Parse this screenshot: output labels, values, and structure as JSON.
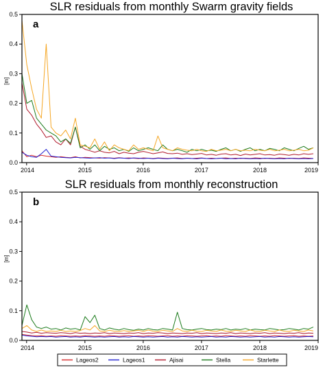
{
  "chart_data": [
    {
      "type": "line",
      "panel_label": "a",
      "title": "SLR residuals from monthly Swarm gravity fields",
      "xlabel": "",
      "ylabel": "[m]",
      "xlim": [
        2013.92,
        2019.0
      ],
      "ylim": [
        0,
        0.5
      ],
      "x_ticks": [
        "2014",
        "2015",
        "2016",
        "2017",
        "2018",
        "2019"
      ],
      "x_tick_values": [
        2014,
        2015,
        2016,
        2017,
        2018,
        2019
      ],
      "y_ticks": [
        "0.0",
        "0.1",
        "0.2",
        "0.3",
        "0.4",
        "0.5"
      ],
      "y_tick_values": [
        0,
        0.1,
        0.2,
        0.3,
        0.4,
        0.5
      ],
      "grid": false,
      "x_step": 0.0833,
      "series": [
        {
          "name": "Lageos2",
          "color": "#d62728",
          "values": [
            0.04,
            0.02,
            0.025,
            0.02,
            0.025,
            0.022,
            0.02,
            0.018,
            0.02,
            0.018,
            0.017,
            0.02,
            0.016,
            0.018,
            0.017,
            0.016,
            0.015,
            0.017,
            0.016,
            0.015,
            0.017,
            0.015,
            0.016,
            0.015,
            0.014,
            0.016,
            0.015,
            0.014,
            0.016,
            0.015,
            0.014,
            0.015,
            0.016,
            0.014,
            0.015,
            0.014,
            0.015,
            0.016,
            0.014,
            0.015,
            0.014,
            0.015,
            0.016,
            0.014,
            0.015,
            0.014,
            0.015,
            0.014,
            0.016,
            0.015,
            0.014,
            0.015,
            0.014,
            0.016,
            0.015,
            0.014,
            0.015,
            0.014,
            0.016,
            0.015,
            0.014
          ]
        },
        {
          "name": "Lageos1",
          "color": "#1f1fd0",
          "values": [
            0.035,
            0.025,
            0.02,
            0.018,
            0.03,
            0.045,
            0.022,
            0.02,
            0.018,
            0.017,
            0.016,
            0.018,
            0.017,
            0.016,
            0.015,
            0.016,
            0.017,
            0.015,
            0.016,
            0.014,
            0.016,
            0.015,
            0.014,
            0.016,
            0.015,
            0.014,
            0.015,
            0.013,
            0.015,
            0.014,
            0.013,
            0.015,
            0.014,
            0.013,
            0.015,
            0.014,
            0.013,
            0.015,
            0.014,
            0.013,
            0.014,
            0.015,
            0.013,
            0.014,
            0.013,
            0.015,
            0.014,
            0.013,
            0.014,
            0.013,
            0.015,
            0.014,
            0.013,
            0.014,
            0.013,
            0.015,
            0.014,
            0.013,
            0.014,
            0.013,
            0.014
          ]
        },
        {
          "name": "Ajisai",
          "color": "#b0182a",
          "values": [
            0.27,
            0.18,
            0.16,
            0.13,
            0.11,
            0.085,
            0.09,
            0.07,
            0.06,
            0.08,
            0.06,
            0.12,
            0.055,
            0.045,
            0.04,
            0.035,
            0.04,
            0.035,
            0.033,
            0.038,
            0.03,
            0.035,
            0.032,
            0.03,
            0.035,
            0.038,
            0.034,
            0.03,
            0.033,
            0.036,
            0.031,
            0.03,
            0.032,
            0.028,
            0.03,
            0.027,
            0.029,
            0.031,
            0.026,
            0.028,
            0.025,
            0.029,
            0.03,
            0.026,
            0.028,
            0.024,
            0.029,
            0.026,
            0.028,
            0.03,
            0.026,
            0.027,
            0.025,
            0.029,
            0.027,
            0.025,
            0.028,
            0.026,
            0.03,
            0.028,
            0.03
          ]
        },
        {
          "name": "Stella",
          "color": "#1a7a1a",
          "values": [
            0.3,
            0.2,
            0.21,
            0.15,
            0.13,
            0.11,
            0.1,
            0.09,
            0.07,
            0.08,
            0.065,
            0.12,
            0.05,
            0.06,
            0.045,
            0.06,
            0.04,
            0.055,
            0.045,
            0.05,
            0.04,
            0.045,
            0.038,
            0.05,
            0.04,
            0.045,
            0.05,
            0.045,
            0.04,
            0.06,
            0.045,
            0.04,
            0.045,
            0.04,
            0.035,
            0.045,
            0.04,
            0.045,
            0.04,
            0.042,
            0.038,
            0.045,
            0.05,
            0.04,
            0.045,
            0.038,
            0.045,
            0.05,
            0.04,
            0.045,
            0.04,
            0.048,
            0.045,
            0.04,
            0.05,
            0.045,
            0.04,
            0.048,
            0.055,
            0.045,
            0.05
          ]
        },
        {
          "name": "Starlette",
          "color": "#f5a623",
          "values": [
            0.48,
            0.33,
            0.25,
            0.18,
            0.15,
            0.4,
            0.12,
            0.1,
            0.09,
            0.11,
            0.08,
            0.15,
            0.06,
            0.055,
            0.05,
            0.08,
            0.045,
            0.07,
            0.04,
            0.06,
            0.05,
            0.045,
            0.04,
            0.06,
            0.045,
            0.05,
            0.045,
            0.04,
            0.09,
            0.05,
            0.045,
            0.04,
            0.05,
            0.045,
            0.042,
            0.04,
            0.045,
            0.04,
            0.038,
            0.045,
            0.04,
            0.042,
            0.045,
            0.04,
            0.045,
            0.04,
            0.042,
            0.04,
            0.045,
            0.042,
            0.04,
            0.045,
            0.04,
            0.042,
            0.045,
            0.04,
            0.042,
            0.045,
            0.04,
            0.042,
            0.05
          ]
        }
      ]
    },
    {
      "type": "line",
      "panel_label": "b",
      "title": "SLR residuals from monthly reconstruction",
      "xlabel": "",
      "ylabel": "[m]",
      "xlim": [
        2013.92,
        2019.0
      ],
      "ylim": [
        0,
        0.5
      ],
      "x_ticks": [
        "2014",
        "2015",
        "2016",
        "2017",
        "2018",
        "2019"
      ],
      "x_tick_values": [
        2014,
        2015,
        2016,
        2017,
        2018,
        2019
      ],
      "y_ticks": [
        "0.0",
        "0.1",
        "0.2",
        "0.3",
        "0.4",
        "0.5"
      ],
      "y_tick_values": [
        0,
        0.1,
        0.2,
        0.3,
        0.4,
        0.5
      ],
      "grid": false,
      "x_step": 0.0833,
      "series": [
        {
          "name": "Lageos2",
          "color": "#d62728",
          "values": [
            0.02,
            0.018,
            0.016,
            0.015,
            0.016,
            0.014,
            0.015,
            0.014,
            0.016,
            0.015,
            0.014,
            0.015,
            0.014,
            0.016,
            0.015,
            0.014,
            0.015,
            0.014,
            0.016,
            0.015,
            0.014,
            0.015,
            0.016,
            0.014,
            0.015,
            0.014,
            0.016,
            0.015,
            0.014,
            0.015,
            0.016,
            0.014,
            0.015,
            0.014,
            0.016,
            0.015,
            0.014,
            0.015,
            0.016,
            0.014,
            0.015,
            0.014,
            0.016,
            0.015,
            0.014,
            0.015,
            0.014,
            0.016,
            0.015,
            0.014,
            0.015,
            0.014,
            0.016,
            0.015,
            0.014,
            0.015,
            0.016,
            0.014,
            0.015,
            0.014,
            0.015
          ]
        },
        {
          "name": "Lageos1",
          "color": "#1f1fd0",
          "values": [
            0.018,
            0.015,
            0.014,
            0.012,
            0.013,
            0.012,
            0.013,
            0.011,
            0.012,
            0.013,
            0.011,
            0.012,
            0.011,
            0.013,
            0.012,
            0.011,
            0.012,
            0.011,
            0.012,
            0.013,
            0.011,
            0.012,
            0.011,
            0.013,
            0.012,
            0.011,
            0.012,
            0.011,
            0.012,
            0.013,
            0.011,
            0.012,
            0.011,
            0.013,
            0.012,
            0.011,
            0.012,
            0.011,
            0.012,
            0.013,
            0.011,
            0.012,
            0.011,
            0.013,
            0.012,
            0.011,
            0.012,
            0.011,
            0.012,
            0.013,
            0.011,
            0.012,
            0.011,
            0.013,
            0.012,
            0.011,
            0.012,
            0.011,
            0.012,
            0.013,
            0.012
          ]
        },
        {
          "name": "Ajisai",
          "color": "#b0182a",
          "values": [
            0.03,
            0.028,
            0.025,
            0.027,
            0.024,
            0.026,
            0.025,
            0.024,
            0.026,
            0.025,
            0.023,
            0.026,
            0.024,
            0.025,
            0.023,
            0.025,
            0.024,
            0.026,
            0.023,
            0.025,
            0.024,
            0.023,
            0.025,
            0.024,
            0.026,
            0.023,
            0.025,
            0.024,
            0.026,
            0.025,
            0.023,
            0.025,
            0.024,
            0.023,
            0.025,
            0.024,
            0.026,
            0.023,
            0.025,
            0.024,
            0.023,
            0.025,
            0.024,
            0.026,
            0.023,
            0.025,
            0.024,
            0.023,
            0.025,
            0.024,
            0.026,
            0.023,
            0.025,
            0.024,
            0.023,
            0.025,
            0.024,
            0.026,
            0.023,
            0.025,
            0.024
          ]
        },
        {
          "name": "Stella",
          "color": "#1a7a1a",
          "values": [
            0.05,
            0.12,
            0.07,
            0.045,
            0.04,
            0.045,
            0.038,
            0.04,
            0.035,
            0.042,
            0.038,
            0.04,
            0.035,
            0.08,
            0.06,
            0.085,
            0.04,
            0.035,
            0.042,
            0.038,
            0.035,
            0.04,
            0.036,
            0.034,
            0.038,
            0.035,
            0.04,
            0.036,
            0.035,
            0.04,
            0.038,
            0.035,
            0.095,
            0.04,
            0.036,
            0.035,
            0.038,
            0.04,
            0.036,
            0.035,
            0.038,
            0.036,
            0.04,
            0.035,
            0.038,
            0.036,
            0.04,
            0.035,
            0.038,
            0.036,
            0.035,
            0.04,
            0.038,
            0.035,
            0.036,
            0.04,
            0.038,
            0.035,
            0.04,
            0.038,
            0.045
          ]
        },
        {
          "name": "Starlette",
          "color": "#f5a623",
          "values": [
            0.04,
            0.05,
            0.035,
            0.03,
            0.035,
            0.03,
            0.032,
            0.03,
            0.034,
            0.03,
            0.032,
            0.03,
            0.033,
            0.04,
            0.035,
            0.05,
            0.032,
            0.03,
            0.034,
            0.031,
            0.03,
            0.033,
            0.03,
            0.032,
            0.034,
            0.03,
            0.035,
            0.031,
            0.03,
            0.034,
            0.032,
            0.03,
            0.04,
            0.032,
            0.03,
            0.034,
            0.031,
            0.03,
            0.034,
            0.032,
            0.03,
            0.035,
            0.031,
            0.03,
            0.034,
            0.032,
            0.03,
            0.035,
            0.031,
            0.03,
            0.034,
            0.032,
            0.03,
            0.035,
            0.031,
            0.03,
            0.034,
            0.032,
            0.03,
            0.035,
            0.032
          ]
        }
      ]
    }
  ],
  "legend": {
    "placement": "bottom",
    "entries": [
      {
        "label": "Lageos2",
        "color": "#d62728"
      },
      {
        "label": "Lageos1",
        "color": "#1f1fd0"
      },
      {
        "label": "Ajisai",
        "color": "#b0182a"
      },
      {
        "label": "Stella",
        "color": "#1a7a1a"
      },
      {
        "label": "Starlette",
        "color": "#f5a623"
      }
    ]
  }
}
